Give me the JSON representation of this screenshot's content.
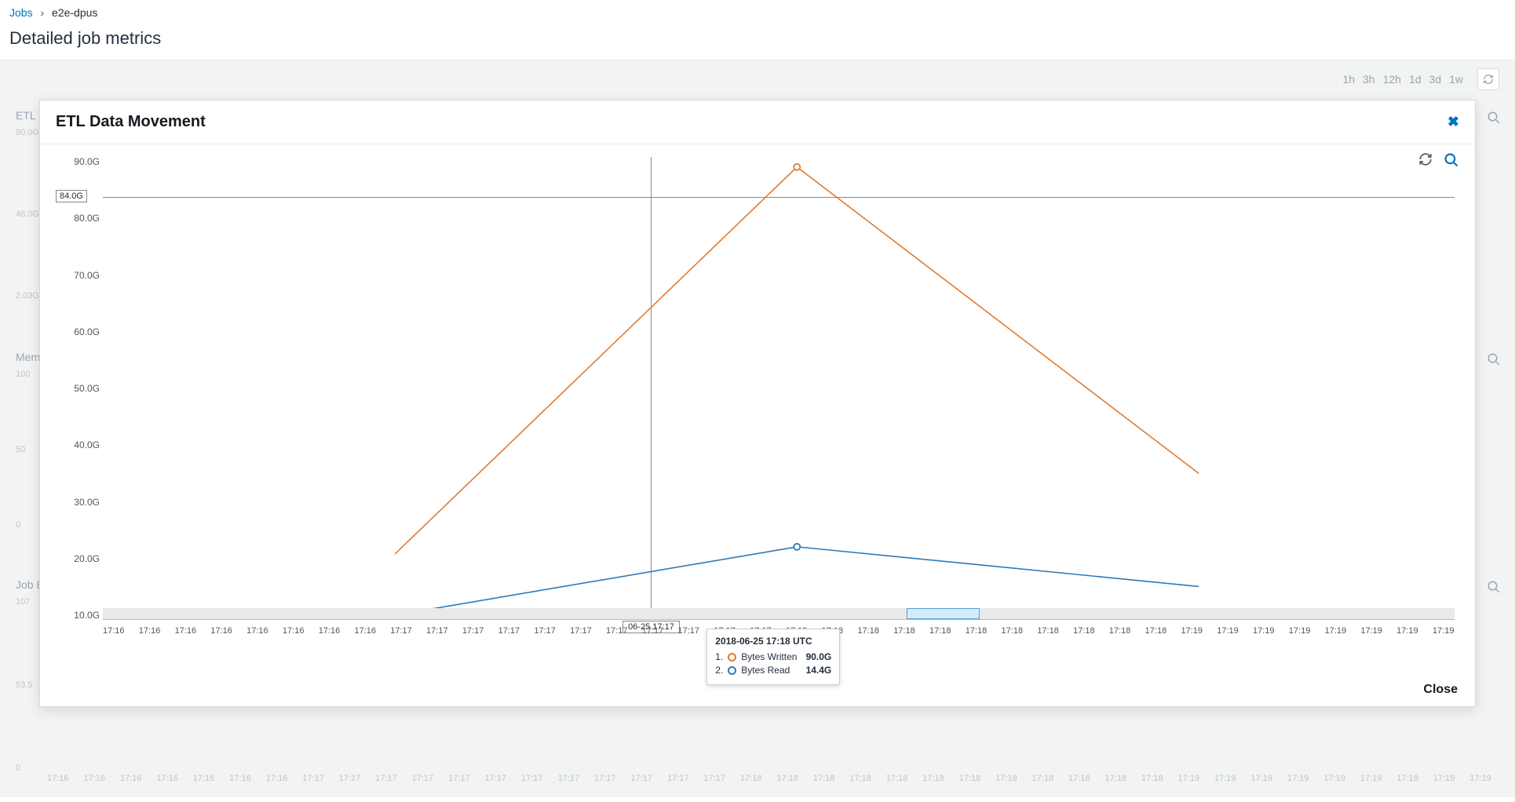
{
  "breadcrumb": {
    "root": "Jobs",
    "current": "e2e-dpus"
  },
  "page_title": "Detailed job metrics",
  "range_buttons": [
    "1h",
    "3h",
    "12h",
    "1d",
    "3d",
    "1w"
  ],
  "bg_labels": {
    "card1": "ETL D",
    "y1a": "90.0G",
    "y1b": "46.0G",
    "y1c": "2.03G",
    "card2": "Memo",
    "y2a": "100",
    "y2b": "50",
    "y2c": "0",
    "card3": "Job E",
    "y3a": "107",
    "y3b": "53.5",
    "y3c": "0"
  },
  "bg_x_ticks": [
    "17:16",
    "17:16",
    "17:16",
    "17:16",
    "17:16",
    "17:16",
    "17:16",
    "17:17",
    "17:17",
    "17:17",
    "17:17",
    "17:17",
    "17:17",
    "17:17",
    "17:17",
    "17:17",
    "17:17",
    "17:17",
    "17:17",
    "17:18",
    "17:18",
    "17:18",
    "17:18",
    "17:18",
    "17:18",
    "17:18",
    "17:18",
    "17:18",
    "17:18",
    "17:18",
    "17:18",
    "17:19",
    "17:19",
    "17:19",
    "17:19",
    "17:19",
    "17:19",
    "17:19",
    "17:19",
    "17:19"
  ],
  "modal": {
    "title": "ETL Data Movement",
    "close_label": "Close"
  },
  "chart": {
    "type": "line",
    "background_color": "#ffffff",
    "grid_color": "#e0e0e0",
    "axis_color": "#888888",
    "label_fontsize": 12,
    "ylim": [
      0,
      92
    ],
    "y_ticks": [
      "90.0G",
      "80.0G",
      "70.0G",
      "60.0G",
      "50.0G",
      "40.0G",
      "30.0G",
      "20.0G",
      "10.0G"
    ],
    "y_annotation": "84.0G",
    "y_annotation_value": 84,
    "x_labels": [
      "17:16",
      "17:16",
      "17:16",
      "17:16",
      "17:16",
      "17:16",
      "17:16",
      "17:16",
      "17:17",
      "17:17",
      "17:17",
      "17:17",
      "17:17",
      "17:17",
      "17:17",
      "17:17",
      "17:17",
      "17:17",
      "17:17",
      "17:18",
      "17:18",
      "17:18",
      "17:18",
      "17:18",
      "17:18",
      "17:18",
      "17:18",
      "17:18",
      "17:18",
      "17:18",
      "17:19",
      "17:19",
      "17:19",
      "17:19",
      "17:19",
      "17:19",
      "17:19",
      "17:19"
    ],
    "n_ticks": 38,
    "crosshair_index": 15,
    "crosshair_label": "06-25 17:17",
    "selection_brush": {
      "start_index": 22,
      "end_index": 24
    },
    "series": [
      {
        "name": "Bytes Written",
        "color": "#e07b2e",
        "line_width": 1.6,
        "marker": "circle",
        "points": [
          {
            "i": 8,
            "y": 13.0
          },
          {
            "i": 19,
            "y": 90.0
          },
          {
            "i": 30,
            "y": 29.0
          }
        ]
      },
      {
        "name": "Bytes Read",
        "color": "#2f7ab8",
        "line_width": 1.6,
        "marker": "circle",
        "points": [
          {
            "i": 8,
            "y": 0.8
          },
          {
            "i": 19,
            "y": 14.4
          },
          {
            "i": 30,
            "y": 6.5
          }
        ]
      }
    ],
    "hover_point_index": 19
  },
  "tooltip": {
    "title": "2018-06-25 17:18 UTC",
    "rows": [
      {
        "n": "1.",
        "label": "Bytes Written",
        "value": "90.0G",
        "color": "#e07b2e"
      },
      {
        "n": "2.",
        "label": "Bytes Read",
        "value": "14.4G",
        "color": "#2f7ab8"
      }
    ]
  }
}
